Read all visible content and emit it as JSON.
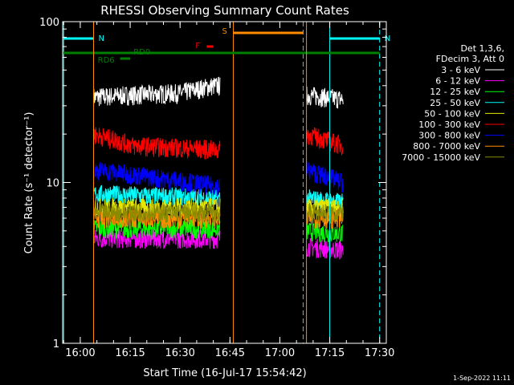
{
  "chart_data": {
    "type": "line",
    "title": "RHESSI Observing Summary Count Rates",
    "xlabel": "Start Time (16-Jul-17 15:54:42)",
    "ylabel": "Count Rate (s⁻¹ detector⁻¹)",
    "y_scale": "log",
    "ylim": [
      1,
      100
    ],
    "xlim": [
      "15:54:42",
      "17:32:00"
    ],
    "x_ticks": [
      "16:00",
      "16:15",
      "16:30",
      "16:45",
      "17:00",
      "17:15",
      "17:30"
    ],
    "y_ticks": [
      "1",
      "10",
      "100"
    ],
    "timestamp": "1-Sep-2022 11:11",
    "legend": {
      "placement": "right",
      "header": [
        "Det 1,3,6,",
        "FDecim 3, Att 0"
      ],
      "entries": [
        {
          "label": "3 - 6 keV",
          "color": "#ffffff"
        },
        {
          "label": "6 - 12 keV",
          "color": "#ff00ff"
        },
        {
          "label": "12 - 25 keV",
          "color": "#00ff00"
        },
        {
          "label": "25 - 50 keV",
          "color": "#00ffff"
        },
        {
          "label": "50 - 100 keV",
          "color": "#e6e600"
        },
        {
          "label": "100 - 300 keV",
          "color": "#ff0000"
        },
        {
          "label": "300 - 800 keV",
          "color": "#0000ff"
        },
        {
          "label": "800 - 7000 keV",
          "color": "#ff8c00"
        },
        {
          "label": "7000 - 15000 keV",
          "color": "#8b8b00"
        }
      ]
    },
    "intervals": [
      {
        "label": "N",
        "color": "#00ffff",
        "start": "15:55:00",
        "end": "16:04:00",
        "style": "solid"
      },
      {
        "label": "N",
        "color": "#00ffff",
        "start": "17:15:00",
        "end": "17:30:00",
        "style": "dashed-right"
      },
      {
        "label": "S",
        "color": "#ff8c00",
        "start": "16:46:00",
        "end": "17:07:00",
        "style": "dashed-right"
      },
      {
        "label": "F",
        "color": "#ff0000",
        "start": "16:38:00",
        "end": "16:40:00",
        "style": "solid"
      },
      {
        "label": "RD0",
        "color": "#008000",
        "start": "15:54:42",
        "end": "17:30:00",
        "style": "solid"
      },
      {
        "label": "RD6",
        "color": "#008000",
        "start": "16:12:00",
        "end": "16:15:00",
        "style": "solid"
      }
    ],
    "segments": [
      {
        "start": "16:04:00",
        "end": "16:42:00"
      },
      {
        "start": "17:08:00",
        "end": "17:19:00"
      }
    ],
    "series": [
      {
        "name": "3 - 6 keV",
        "color": "#ffffff",
        "seg1": [
          {
            "t": "16:04",
            "v": 34
          },
          {
            "t": "16:15",
            "v": 35
          },
          {
            "t": "16:30",
            "v": 36
          },
          {
            "t": "16:40",
            "v": 40
          }
        ],
        "seg2": [
          {
            "t": "17:08",
            "v": 35
          },
          {
            "t": "17:19",
            "v": 33
          }
        ]
      },
      {
        "name": "6 - 12 keV",
        "color": "#ff00ff",
        "seg1": [
          {
            "t": "16:04",
            "v": 4.5
          },
          {
            "t": "16:20",
            "v": 4.5
          },
          {
            "t": "16:41",
            "v": 4.5
          }
        ],
        "seg2": [
          {
            "t": "17:08",
            "v": 4.0
          },
          {
            "t": "17:19",
            "v": 3.8
          }
        ]
      },
      {
        "name": "12 - 25 keV",
        "color": "#00ff00",
        "seg1": [
          {
            "t": "16:04",
            "v": 5.2
          },
          {
            "t": "16:41",
            "v": 5.2
          }
        ],
        "seg2": [
          {
            "t": "17:08",
            "v": 5.0
          },
          {
            "t": "17:19",
            "v": 4.8
          }
        ]
      },
      {
        "name": "25 - 50 keV",
        "color": "#00ffff",
        "seg1": [
          {
            "t": "16:04",
            "v": 8.5
          },
          {
            "t": "16:41",
            "v": 8.0
          }
        ],
        "seg2": [
          {
            "t": "17:08",
            "v": 8.0
          },
          {
            "t": "17:19",
            "v": 7.5
          }
        ]
      },
      {
        "name": "50 - 100 keV",
        "color": "#e6e600",
        "seg1": [
          {
            "t": "16:04",
            "v": 7.0
          },
          {
            "t": "16:41",
            "v": 7.0
          }
        ],
        "seg2": [
          {
            "t": "17:08",
            "v": 7.0
          },
          {
            "t": "17:19",
            "v": 7.0
          }
        ]
      },
      {
        "name": "100 - 300 keV",
        "color": "#ff0000",
        "seg1": [
          {
            "t": "16:04",
            "v": 20
          },
          {
            "t": "16:16",
            "v": 17
          },
          {
            "t": "16:41",
            "v": 16
          }
        ],
        "seg2": [
          {
            "t": "17:08",
            "v": 20
          },
          {
            "t": "17:19",
            "v": 17
          }
        ]
      },
      {
        "name": "300 - 800 keV",
        "color": "#0000ff",
        "seg1": [
          {
            "t": "16:04",
            "v": 12
          },
          {
            "t": "16:41",
            "v": 9.5
          }
        ],
        "seg2": [
          {
            "t": "17:08",
            "v": 12
          },
          {
            "t": "17:19",
            "v": 10
          }
        ]
      },
      {
        "name": "800 - 7000 keV",
        "color": "#ff8c00",
        "seg1": [
          {
            "t": "16:04",
            "v": 6.0
          },
          {
            "t": "16:41",
            "v": 6.0
          }
        ],
        "seg2": [
          {
            "t": "17:08",
            "v": 6.0
          },
          {
            "t": "17:19",
            "v": 6.0
          }
        ]
      },
      {
        "name": "7000 - 15000 keV",
        "color": "#8b8b00",
        "seg1": [
          {
            "t": "16:04",
            "v": 6.5
          },
          {
            "t": "16:41",
            "v": 6.5
          }
        ],
        "seg2": [
          {
            "t": "17:08",
            "v": 6.5
          },
          {
            "t": "17:19",
            "v": 6.5
          }
        ]
      }
    ]
  }
}
